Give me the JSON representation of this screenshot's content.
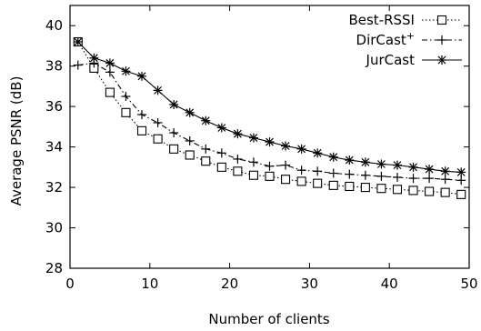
{
  "chart_data": {
    "type": "line",
    "title": "",
    "xlabel": "Number of clients",
    "ylabel": "Average PSNR (dB)",
    "xlim": [
      0,
      50
    ],
    "ylim": [
      28,
      41
    ],
    "xticks": [
      "0",
      "10",
      "20",
      "30",
      "40",
      "50"
    ],
    "yticks": [
      "28",
      "30",
      "32",
      "34",
      "36",
      "38",
      "40"
    ],
    "grid": false,
    "legend_position": "top-right",
    "x": [
      1,
      3,
      5,
      7,
      9,
      11,
      13,
      15,
      17,
      19,
      21,
      23,
      25,
      27,
      29,
      31,
      33,
      35,
      37,
      39,
      41,
      43,
      45,
      47,
      49
    ],
    "series": [
      {
        "name": "Best-RSSI",
        "line_style": "dotted",
        "marker": "open-square",
        "values": [
          39.2,
          37.9,
          36.7,
          35.7,
          34.8,
          34.4,
          33.9,
          33.6,
          33.3,
          33.0,
          32.8,
          32.6,
          32.55,
          32.4,
          32.3,
          32.2,
          32.1,
          32.05,
          32.0,
          31.95,
          31.9,
          31.85,
          31.8,
          31.75,
          31.65
        ]
      },
      {
        "name": "DirCast",
        "name_superscript": "+",
        "line_style": "dash-dot",
        "marker": "plus",
        "values": [
          38.05,
          38.15,
          37.7,
          36.5,
          35.6,
          35.2,
          34.7,
          34.3,
          33.9,
          33.7,
          33.4,
          33.25,
          33.05,
          33.1,
          32.85,
          32.8,
          32.7,
          32.65,
          32.6,
          32.55,
          32.5,
          32.45,
          32.45,
          32.4,
          32.35
        ]
      },
      {
        "name": "JurCast",
        "line_style": "solid",
        "marker": "asterisk",
        "values": [
          39.2,
          38.4,
          38.15,
          37.75,
          37.5,
          36.8,
          36.1,
          35.7,
          35.3,
          34.95,
          34.65,
          34.45,
          34.25,
          34.05,
          33.9,
          33.7,
          33.5,
          33.35,
          33.25,
          33.15,
          33.1,
          33.0,
          32.9,
          32.8,
          32.75
        ]
      }
    ]
  }
}
